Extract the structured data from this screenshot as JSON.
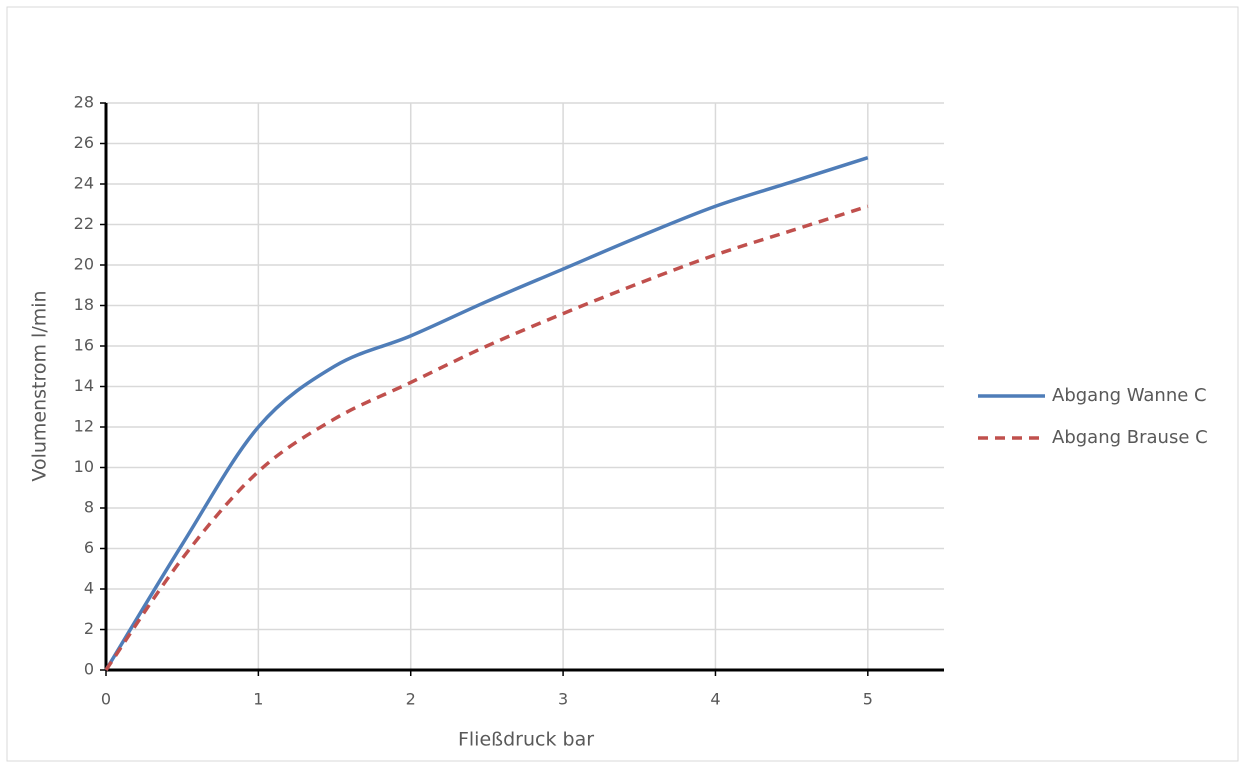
{
  "chart_data": {
    "type": "line",
    "x_label": "Fließdruck bar",
    "y_label": "Volumenstrom l/min",
    "x": [
      0,
      0.5,
      1,
      1.5,
      2,
      2.5,
      3,
      3.5,
      4,
      4.5,
      5
    ],
    "series": [
      {
        "name": "Abgang Wanne C",
        "color": "#4f7db8",
        "line_style": "solid",
        "values": [
          0,
          6.2,
          12,
          15,
          16.5,
          18.2,
          19.8,
          21.4,
          22.9,
          24.1,
          25.3
        ]
      },
      {
        "name": "Abgang Brause C",
        "color": "#c0504d",
        "line_style": "dashed",
        "values": [
          0,
          5.5,
          9.8,
          12.4,
          14.2,
          16,
          17.6,
          19.1,
          20.5,
          21.7,
          22.9
        ]
      }
    ],
    "xlim": [
      0,
      5.5
    ],
    "xticks": [
      0,
      1,
      2,
      3,
      4,
      5
    ],
    "ylim": [
      0,
      28
    ],
    "yticks": [
      0,
      2,
      4,
      6,
      8,
      10,
      12,
      14,
      16,
      18,
      20,
      22,
      24,
      26,
      28
    ],
    "grid": true,
    "legend": "right"
  }
}
